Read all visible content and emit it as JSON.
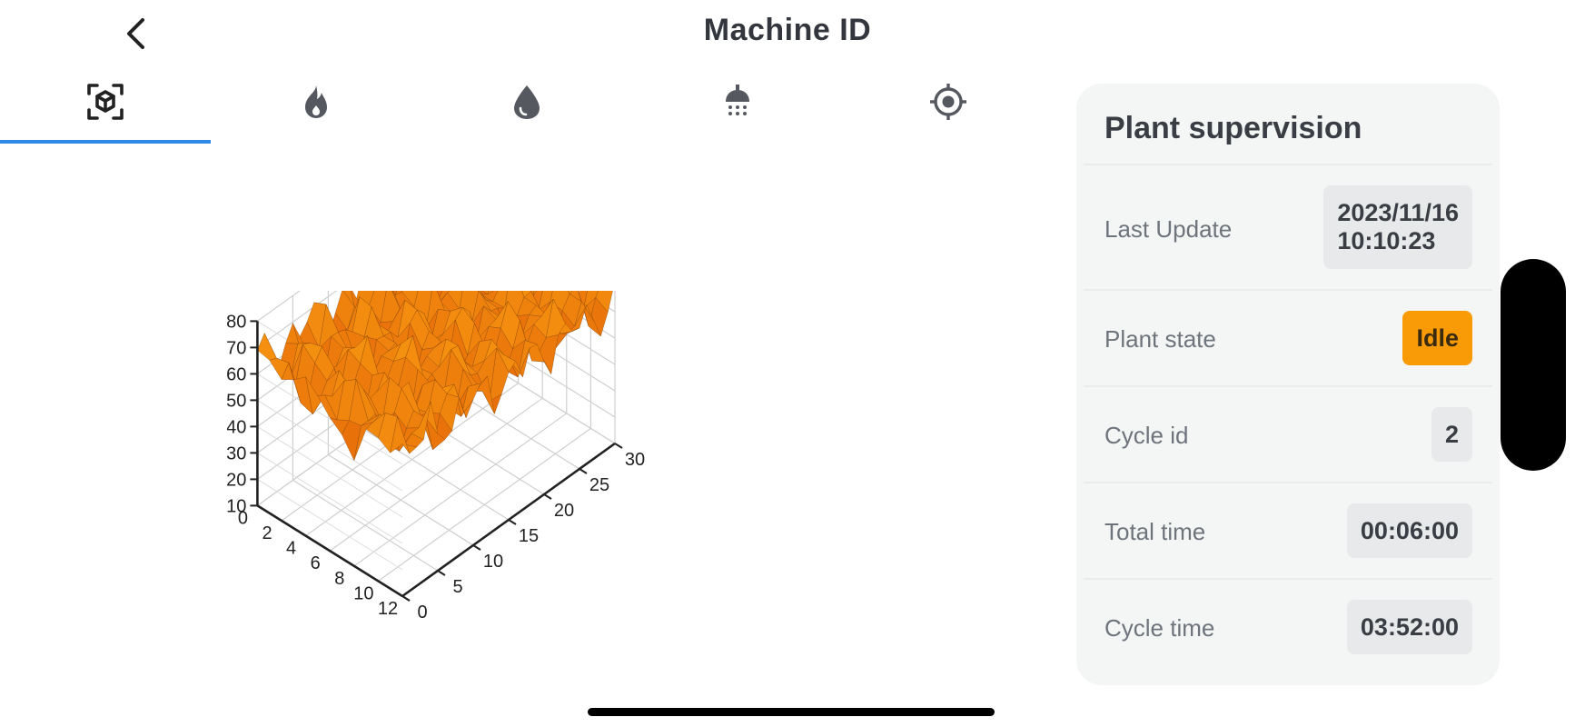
{
  "header": {
    "title": "Machine ID",
    "back_icon": "chevron-left-icon"
  },
  "tabs": [
    {
      "icon": "cube-scan-icon",
      "active": true
    },
    {
      "icon": "flame-icon",
      "active": false
    },
    {
      "icon": "water-drop-icon",
      "active": false
    },
    {
      "icon": "shower-head-icon",
      "active": false
    },
    {
      "icon": "target-icon",
      "active": false
    }
  ],
  "chart_data": {
    "type": "surface",
    "color": "#f58a0a",
    "x_ticks": [
      "0",
      "5",
      "10",
      "15",
      "20",
      "25",
      "30"
    ],
    "y_ticks": [
      "0",
      "2",
      "4",
      "6",
      "8",
      "10",
      "12"
    ],
    "z_ticks": [
      "10",
      "20",
      "30",
      "40",
      "50",
      "60",
      "70",
      "80"
    ],
    "x_range": [
      0,
      30
    ],
    "y_range": [
      0,
      12
    ],
    "z_range": [
      10,
      80
    ],
    "values_z_range_approx": [
      55,
      75
    ],
    "grid": true
  },
  "panel": {
    "title": "Plant supervision",
    "rows": [
      {
        "label": "Last Update",
        "value_line1": "2023/11/16",
        "value_line2": "10:10:23"
      },
      {
        "label": "Plant state",
        "value": "Idle"
      },
      {
        "label": "Cycle id",
        "value": "2"
      },
      {
        "label": "Total time",
        "value": "00:06:00"
      },
      {
        "label": "Cycle time",
        "value": "03:52:00"
      }
    ]
  },
  "colors": {
    "accent": "#2f8ae6",
    "idle": "#f89b06",
    "panel_bg": "#f4f5f5",
    "surface": "#f58a0a"
  }
}
